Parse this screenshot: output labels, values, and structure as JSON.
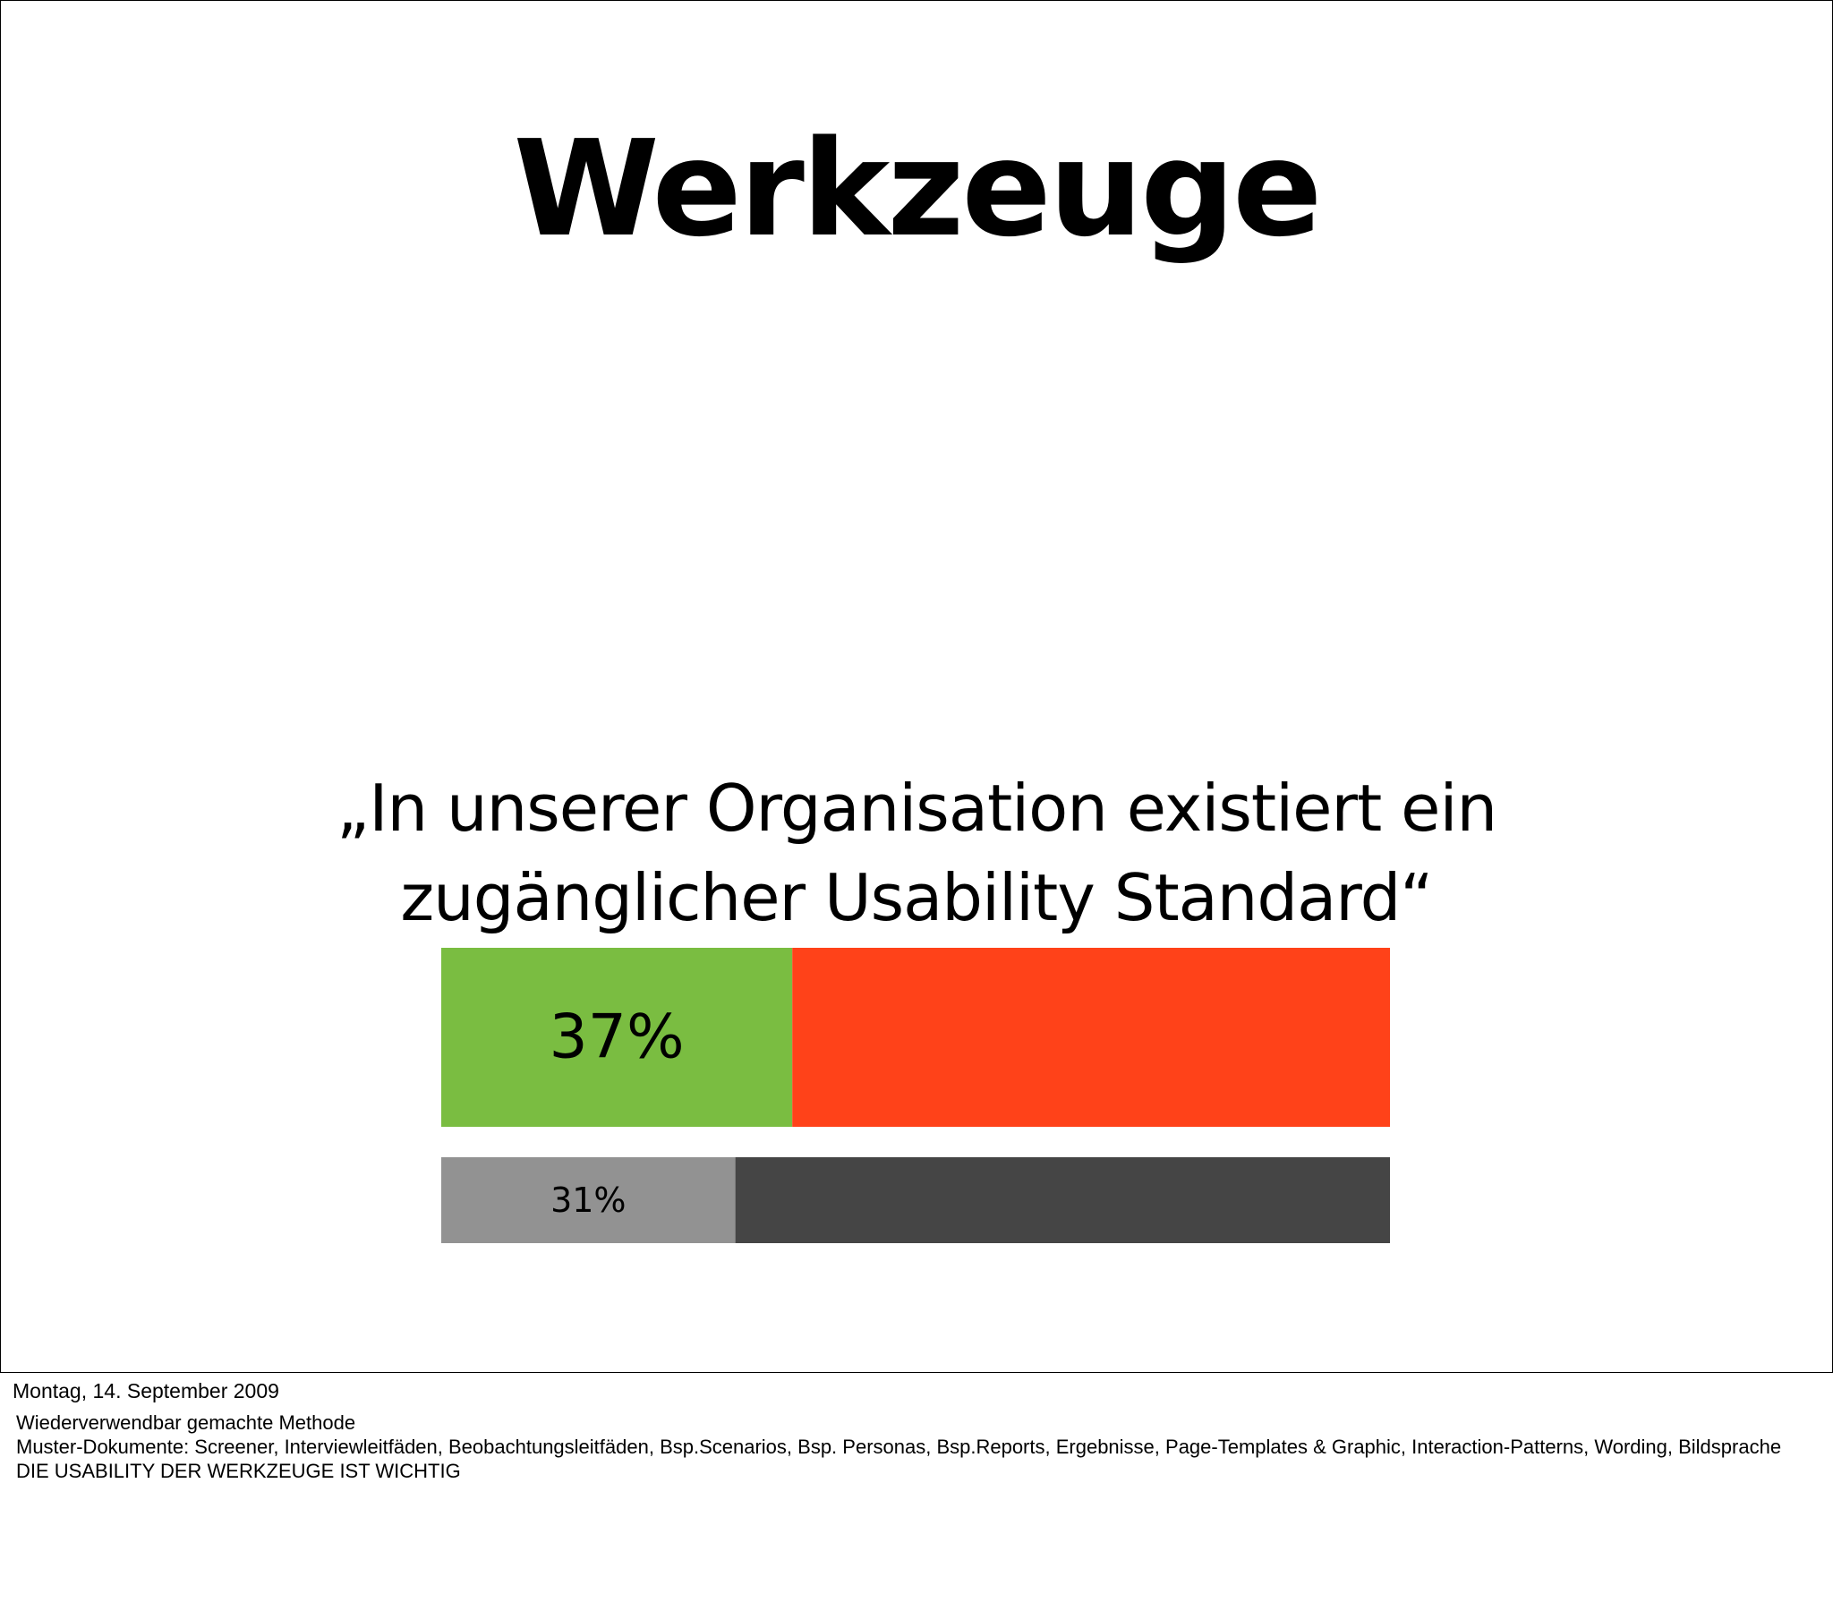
{
  "slide": {
    "title": "Werkzeuge",
    "quote_lines": [
      "„In unserer Organisation existiert ein",
      "zugänglicher Usability Standard“"
    ]
  },
  "chart_data": {
    "type": "bar",
    "orientation": "horizontal",
    "stacked": true,
    "unit": "%",
    "xlim": [
      0,
      100
    ],
    "grid": false,
    "bars": [
      {
        "label": "37%",
        "segments": [
          {
            "value": 37,
            "color": "#7abd41"
          },
          {
            "value": 63,
            "color": "#ff4219"
          }
        ]
      },
      {
        "label": "31%",
        "segments": [
          {
            "value": 31,
            "color": "#929292"
          },
          {
            "value": 69,
            "color": "#454545"
          }
        ]
      }
    ]
  },
  "footer": {
    "date": "Montag, 14. September 2009",
    "notes": [
      "Wiederverwendbar gemachte Methode",
      "Muster-Dokumente: Screener, Interviewleitfäden, Beobachtungsleitfäden, Bsp.Scenarios, Bsp. Personas, Bsp.Reports, Ergebnisse, Page-Templates & Graphic, Interaction-Patterns, Wording, Bildsprache",
      "DIE USABILITY DER WERKZEUGE IST WICHTIG"
    ]
  }
}
